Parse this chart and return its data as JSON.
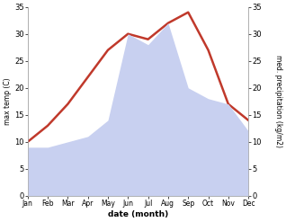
{
  "months": [
    "Jan",
    "Feb",
    "Mar",
    "Apr",
    "May",
    "Jun",
    "Jul",
    "Aug",
    "Sep",
    "Oct",
    "Nov",
    "Dec"
  ],
  "temperature": [
    10,
    13,
    17,
    22,
    27,
    30,
    29,
    32,
    34,
    27,
    17,
    14
  ],
  "precipitation": [
    9,
    9,
    10,
    11,
    14,
    30,
    28,
    32,
    20,
    18,
    17,
    12
  ],
  "temp_color": "#c0392b",
  "precip_fill_color": "#c8d0f0",
  "ylabel_left": "max temp (C)",
  "ylabel_right": "med. precipitation (kg/m2)",
  "xlabel": "date (month)",
  "ylim": [
    0,
    35
  ],
  "yticks": [
    0,
    5,
    10,
    15,
    20,
    25,
    30,
    35
  ],
  "background_color": "#ffffff",
  "temp_linewidth": 1.8,
  "spine_color": "#aaaaaa"
}
